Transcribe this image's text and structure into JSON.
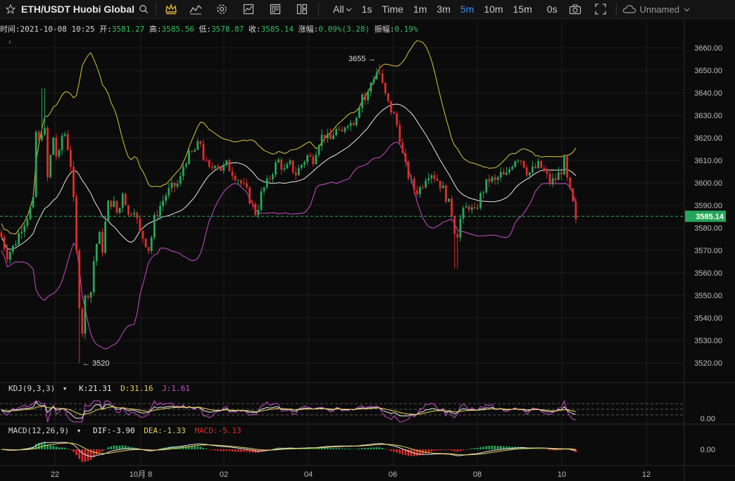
{
  "toolbar": {
    "symbol": "ETH/USDT",
    "exchange": "Huobi Global",
    "intervals": [
      "All",
      "1s",
      "Time",
      "1m",
      "3m",
      "5m",
      "10m",
      "15m",
      "0s"
    ],
    "active_interval": "5m",
    "layout_name": "Unnamed"
  },
  "info": {
    "time_label": "时间:",
    "time": "2021-10-08 10:25",
    "open_label": "开:",
    "open": "3581.27",
    "high_label": "高:",
    "high": "3585.56",
    "low_label": "低:",
    "low": "3578.87",
    "close_label": "收:",
    "close": "3585.14",
    "change_label": "涨幅:",
    "change": "0.09%(3.28)",
    "amp_label": "振幅:",
    "amp": "0.19%"
  },
  "kdj": {
    "name": "KDJ(9,3,3)",
    "k": "K:21.31",
    "d": "D:31.16",
    "j": "J:1.61",
    "axis_label": "0.00"
  },
  "macd": {
    "name": "MACD(12,26,9)",
    "dif": "DIF:-3.90",
    "dea": "DEA:-1.33",
    "macd": "MACD:-5.13",
    "axis_label": "0.00"
  },
  "chart_data": {
    "type": "candlestick",
    "title": "ETH/USDT Huobi Global",
    "y_ticks": [
      3520,
      3530,
      3540,
      3550,
      3560,
      3570,
      3580,
      3590,
      3600,
      3610,
      3620,
      3630,
      3640,
      3650,
      3660
    ],
    "ylim": [
      3512,
      3664
    ],
    "last_price": "3585.14",
    "x_ticks": [
      "22",
      "10月 8",
      "02",
      "04",
      "06",
      "08",
      "10",
      "12"
    ],
    "annotations": [
      {
        "text": "3655 →",
        "price": 3655
      },
      {
        "text": "← 3520",
        "price": 3520
      }
    ],
    "close_path": [
      [
        0,
        3578
      ],
      [
        10,
        3568
      ],
      [
        20,
        3572
      ],
      [
        30,
        3580
      ],
      [
        40,
        3586
      ],
      [
        48,
        3592
      ],
      [
        52,
        3630
      ],
      [
        56,
        3615
      ],
      [
        62,
        3630
      ],
      [
        68,
        3600
      ],
      [
        75,
        3622
      ],
      [
        82,
        3608
      ],
      [
        90,
        3625
      ],
      [
        95,
        3618
      ],
      [
        100,
        3610
      ],
      [
        106,
        3585
      ],
      [
        110,
        3560
      ],
      [
        114,
        3540
      ],
      [
        118,
        3532
      ],
      [
        122,
        3555
      ],
      [
        128,
        3548
      ],
      [
        133,
        3565
      ],
      [
        140,
        3578
      ],
      [
        146,
        3570
      ],
      [
        152,
        3590
      ],
      [
        160,
        3592
      ],
      [
        168,
        3585
      ],
      [
        175,
        3598
      ],
      [
        182,
        3585
      ],
      [
        190,
        3590
      ],
      [
        198,
        3578
      ],
      [
        205,
        3575
      ],
      [
        212,
        3570
      ],
      [
        220,
        3585
      ],
      [
        228,
        3590
      ],
      [
        236,
        3595
      ],
      [
        245,
        3598
      ],
      [
        255,
        3600
      ],
      [
        262,
        3610
      ],
      [
        270,
        3612
      ],
      [
        278,
        3615
      ],
      [
        285,
        3618
      ],
      [
        290,
        3610
      ],
      [
        298,
        3605
      ],
      [
        306,
        3610
      ],
      [
        314,
        3606
      ],
      [
        322,
        3608
      ],
      [
        330,
        3605
      ],
      [
        338,
        3602
      ],
      [
        346,
        3598
      ],
      [
        352,
        3595
      ],
      [
        358,
        3590
      ],
      [
        364,
        3586
      ],
      [
        372,
        3596
      ],
      [
        380,
        3600
      ],
      [
        388,
        3606
      ],
      [
        396,
        3610
      ],
      [
        404,
        3605
      ],
      [
        412,
        3608
      ],
      [
        420,
        3604
      ],
      [
        428,
        3608
      ],
      [
        436,
        3612
      ],
      [
        444,
        3610
      ],
      [
        452,
        3618
      ],
      [
        460,
        3622
      ],
      [
        468,
        3618
      ],
      [
        476,
        3624
      ],
      [
        484,
        3620
      ],
      [
        492,
        3628
      ],
      [
        500,
        3626
      ],
      [
        508,
        3632
      ],
      [
        514,
        3640
      ],
      [
        520,
        3636
      ],
      [
        526,
        3644
      ],
      [
        532,
        3648
      ],
      [
        538,
        3650
      ],
      [
        544,
        3642
      ],
      [
        550,
        3636
      ],
      [
        556,
        3632
      ],
      [
        562,
        3628
      ],
      [
        568,
        3620
      ],
      [
        573,
        3610
      ],
      [
        578,
        3605
      ],
      [
        584,
        3600
      ],
      [
        590,
        3596
      ],
      [
        598,
        3598
      ],
      [
        606,
        3604
      ],
      [
        612,
        3605
      ],
      [
        620,
        3602
      ],
      [
        628,
        3598
      ],
      [
        636,
        3592
      ],
      [
        642,
        3586
      ],
      [
        648,
        3575
      ],
      [
        654,
        3584
      ],
      [
        660,
        3588
      ],
      [
        666,
        3590
      ],
      [
        674,
        3586
      ],
      [
        680,
        3592
      ],
      [
        688,
        3598
      ],
      [
        696,
        3602
      ],
      [
        704,
        3600
      ],
      [
        710,
        3604
      ],
      [
        718,
        3602
      ],
      [
        726,
        3608
      ],
      [
        734,
        3612
      ],
      [
        742,
        3610
      ],
      [
        750,
        3604
      ],
      [
        758,
        3606
      ],
      [
        766,
        3608
      ],
      [
        774,
        3604
      ],
      [
        782,
        3600
      ],
      [
        790,
        3602
      ],
      [
        798,
        3606
      ],
      [
        802,
        3610
      ],
      [
        806,
        3600
      ],
      [
        810,
        3595
      ],
      [
        814,
        3590
      ],
      [
        818,
        3582
      ],
      [
        822,
        3585
      ]
    ],
    "indicators": [
      {
        "name": "BB upper",
        "color": "#d6c83a"
      },
      {
        "name": "BB middle",
        "color": "#e8e8e8"
      },
      {
        "name": "BB lower",
        "color": "#c84fc8"
      }
    ]
  },
  "colors": {
    "up": "#26a65b",
    "down": "#e02b2b",
    "bb_upper": "#d6c83a",
    "bb_mid": "#e8e8e8",
    "bb_lower": "#c84fc8",
    "accent": "#2f8cff"
  }
}
